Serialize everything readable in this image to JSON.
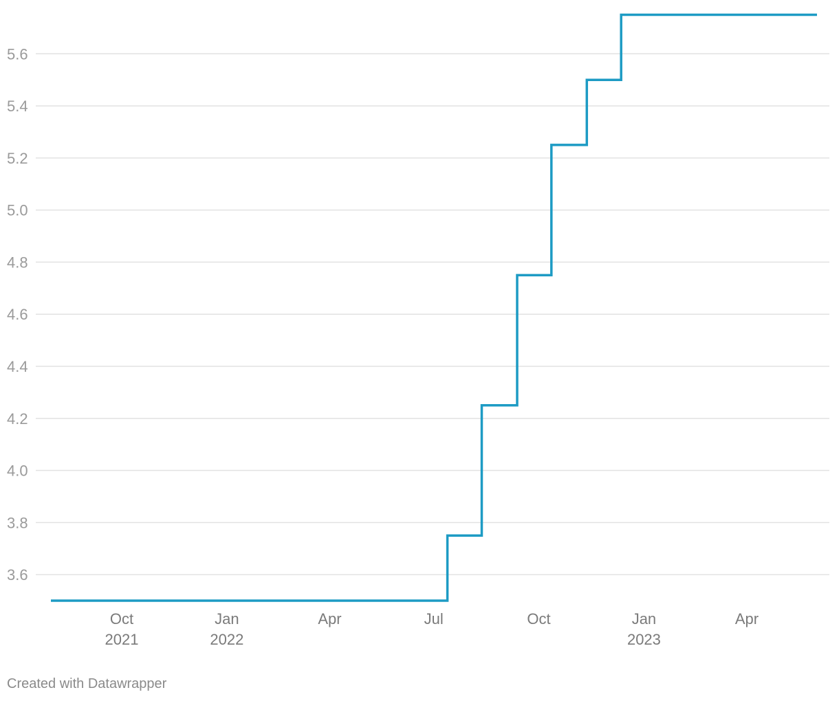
{
  "chart_data": {
    "type": "line",
    "interpolation": "step-after",
    "title": "",
    "xlabel": "",
    "ylabel": "",
    "ylim": [
      3.5,
      5.75
    ],
    "xlim": [
      "2021-07-01",
      "2023-06-01"
    ],
    "y_ticks": [
      "3.6",
      "3.8",
      "4.0",
      "4.2",
      "4.4",
      "4.6",
      "4.8",
      "5.0",
      "5.2",
      "5.4",
      "5.6"
    ],
    "x_ticks": [
      {
        "date": "2021-10-01",
        "month": "Oct",
        "year": "2021"
      },
      {
        "date": "2022-01-01",
        "month": "Jan",
        "year": "2022"
      },
      {
        "date": "2022-04-01",
        "month": "Apr",
        "year": ""
      },
      {
        "date": "2022-07-01",
        "month": "Jul",
        "year": ""
      },
      {
        "date": "2022-10-01",
        "month": "Oct",
        "year": ""
      },
      {
        "date": "2023-01-01",
        "month": "Jan",
        "year": "2023"
      },
      {
        "date": "2023-04-01",
        "month": "Apr",
        "year": ""
      }
    ],
    "grid": true,
    "series": [
      {
        "color": "#1d9bc4",
        "points": [
          {
            "x": "2021-07-01",
            "y": 3.5
          },
          {
            "x": "2022-07-13",
            "y": 3.75
          },
          {
            "x": "2022-08-12",
            "y": 4.25
          },
          {
            "x": "2022-09-12",
            "y": 4.75
          },
          {
            "x": "2022-10-12",
            "y": 5.25
          },
          {
            "x": "2022-11-12",
            "y": 5.5
          },
          {
            "x": "2022-12-12",
            "y": 5.75
          },
          {
            "x": "2023-05-28",
            "y": 5.75
          }
        ]
      }
    ]
  },
  "footer": {
    "credit": "Created with Datawrapper"
  }
}
